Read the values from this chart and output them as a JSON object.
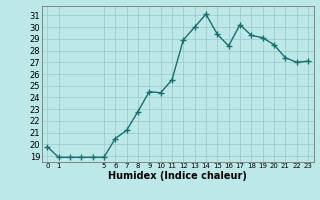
{
  "x": [
    0,
    1,
    2,
    3,
    4,
    5,
    6,
    7,
    8,
    9,
    10,
    11,
    12,
    13,
    14,
    15,
    16,
    17,
    18,
    19,
    20,
    21,
    22,
    23
  ],
  "y": [
    19.8,
    18.9,
    18.9,
    18.9,
    18.9,
    18.9,
    20.5,
    21.2,
    22.8,
    24.5,
    24.4,
    25.5,
    28.9,
    30.0,
    31.1,
    29.4,
    28.4,
    30.2,
    29.3,
    29.1,
    28.5,
    27.4,
    27.0,
    27.1
  ],
  "xlabel": "Humidex (Indice chaleur)",
  "bg_color": "#bde8e8",
  "line_color": "#1a6e6e",
  "grid_color": "#a0cccc",
  "ylim": [
    18.5,
    31.8
  ],
  "xlim": [
    -0.5,
    23.5
  ],
  "yticks": [
    19,
    20,
    21,
    22,
    23,
    24,
    25,
    26,
    27,
    28,
    29,
    30,
    31
  ],
  "xticks": [
    0,
    1,
    5,
    6,
    7,
    8,
    9,
    10,
    11,
    12,
    13,
    14,
    15,
    16,
    17,
    18,
    19,
    20,
    21,
    22,
    23
  ],
  "xtick_labels": [
    "0",
    "1",
    "5",
    "6",
    "7",
    "8",
    "9",
    "10",
    "11",
    "12",
    "13",
    "14",
    "15",
    "16",
    "17",
    "18",
    "19",
    "20",
    "21",
    "22",
    "23"
  ],
  "marker": "+",
  "linewidth": 1.0,
  "markersize": 4,
  "ytick_fontsize": 6.0,
  "xtick_fontsize": 5.0,
  "xlabel_fontsize": 7.0
}
